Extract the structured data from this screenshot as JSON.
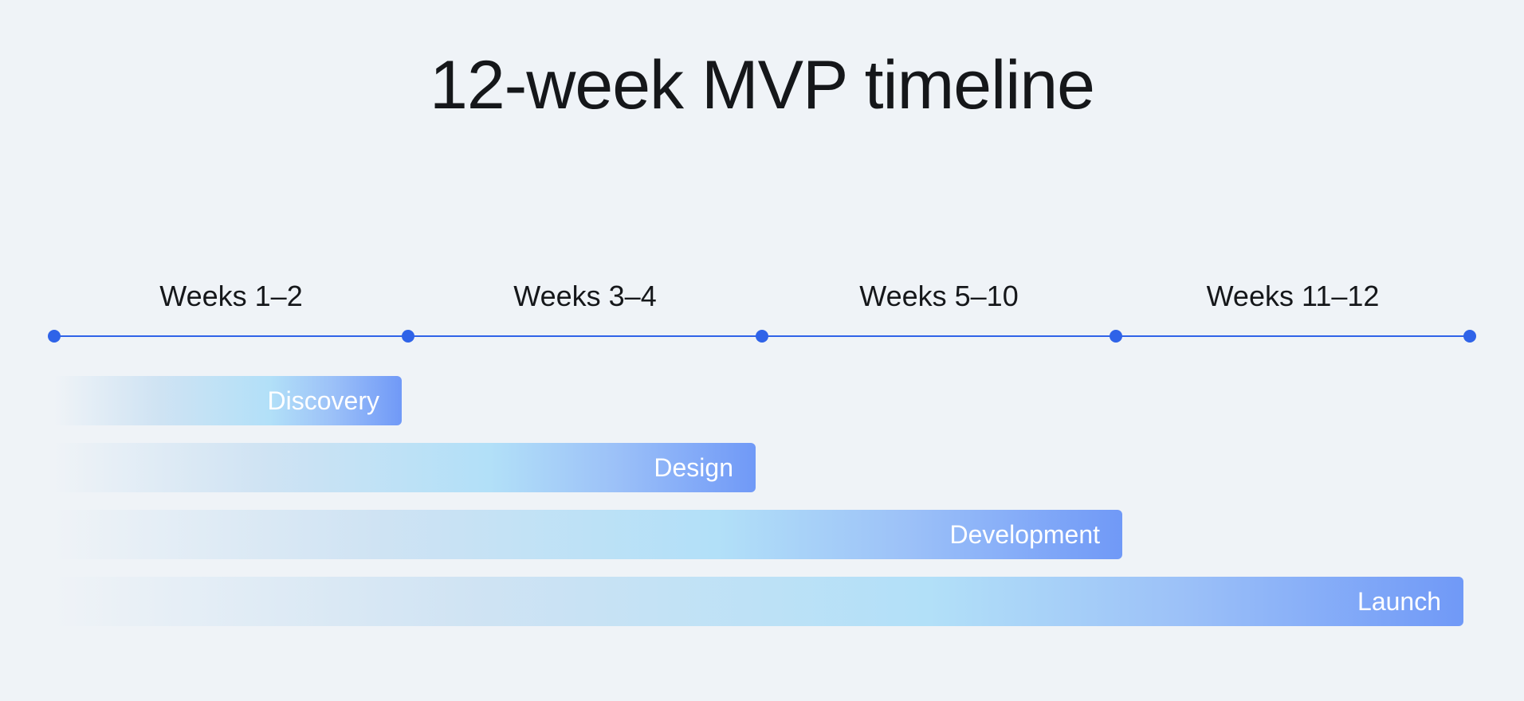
{
  "title": "12-week MVP timeline",
  "colors": {
    "background": "#eff3f7",
    "axis": "#2f63e8",
    "bar_start": "#cfe3f3",
    "bar_mid": "#b2e0f8",
    "bar_end": "#7099f7",
    "bar_text": "#ffffff",
    "title_text": "#15171a"
  },
  "periods": [
    {
      "label": "Weeks 1–2"
    },
    {
      "label": "Weeks 3–4"
    },
    {
      "label": "Weeks 5–10"
    },
    {
      "label": "Weeks 11–12"
    }
  ],
  "phases": [
    {
      "label": "Discovery",
      "ends_at_period": 1
    },
    {
      "label": "Design",
      "ends_at_period": 2
    },
    {
      "label": "Development",
      "ends_at_period": 3
    },
    {
      "label": "Launch",
      "ends_at_period": 4
    }
  ]
}
